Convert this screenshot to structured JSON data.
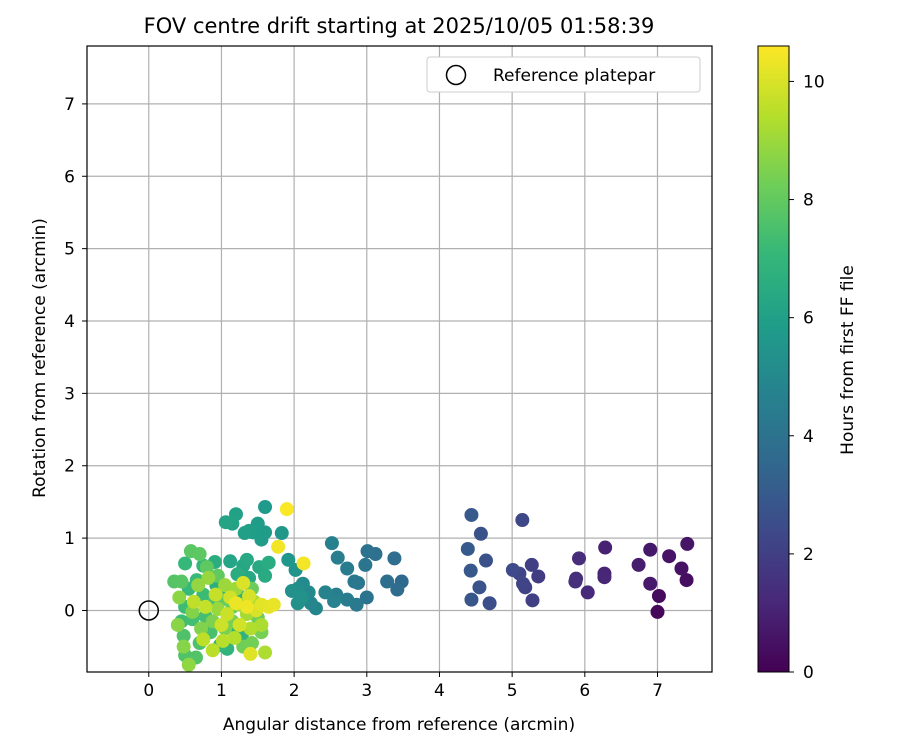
{
  "chart_data": {
    "type": "scatter",
    "title": "FOV centre drift starting at 2025/10/05 01:58:39",
    "xlabel": "Angular distance from reference (arcmin)",
    "ylabel": "Rotation from reference (arcmin)",
    "xlim": [
      -0.85,
      7.75
    ],
    "ylim": [
      -0.85,
      7.8
    ],
    "xticks": [
      0,
      1,
      2,
      3,
      4,
      5,
      6,
      7
    ],
    "yticks": [
      0,
      1,
      2,
      3,
      4,
      5,
      6,
      7
    ],
    "grid": true,
    "legend": {
      "placement": "top-right",
      "entries": [
        "Reference platepar"
      ]
    },
    "reference_point": {
      "name": "Reference platepar",
      "x": 0,
      "y": 0
    },
    "colorbar": {
      "label": "Hours from first FF file",
      "range": [
        0,
        10.6
      ],
      "ticks": [
        0,
        2,
        4,
        6,
        8,
        10
      ],
      "colormap": "viridis",
      "colors": [
        "#440154",
        "#482878",
        "#3e4989",
        "#31688e",
        "#26828e",
        "#1f9e89",
        "#35b779",
        "#6ece58",
        "#b5de2b",
        "#fde725"
      ]
    },
    "points": [
      {
        "x": 7.0,
        "y": -0.02,
        "t": 0.2
      },
      {
        "x": 7.02,
        "y": 0.2,
        "t": 0.3
      },
      {
        "x": 7.4,
        "y": 0.42,
        "t": 0.4
      },
      {
        "x": 7.33,
        "y": 0.58,
        "t": 0.5
      },
      {
        "x": 7.16,
        "y": 0.75,
        "t": 0.55
      },
      {
        "x": 7.41,
        "y": 0.92,
        "t": 0.6
      },
      {
        "x": 6.9,
        "y": 0.84,
        "t": 0.7
      },
      {
        "x": 6.9,
        "y": 0.37,
        "t": 0.75
      },
      {
        "x": 6.74,
        "y": 0.63,
        "t": 0.85
      },
      {
        "x": 6.28,
        "y": 0.87,
        "t": 1.0
      },
      {
        "x": 6.27,
        "y": 0.51,
        "t": 1.1
      },
      {
        "x": 6.27,
        "y": 0.46,
        "t": 1.15
      },
      {
        "x": 6.04,
        "y": 0.25,
        "t": 1.25
      },
      {
        "x": 5.92,
        "y": 0.72,
        "t": 1.35
      },
      {
        "x": 5.88,
        "y": 0.44,
        "t": 1.4
      },
      {
        "x": 5.87,
        "y": 0.4,
        "t": 1.45
      },
      {
        "x": 5.36,
        "y": 0.47,
        "t": 1.9
      },
      {
        "x": 5.27,
        "y": 0.63,
        "t": 2.0
      },
      {
        "x": 5.28,
        "y": 0.14,
        "t": 2.05
      },
      {
        "x": 5.18,
        "y": 0.32,
        "t": 2.1
      },
      {
        "x": 5.15,
        "y": 0.37,
        "t": 2.15
      },
      {
        "x": 5.1,
        "y": 0.51,
        "t": 2.2
      },
      {
        "x": 5.14,
        "y": 1.25,
        "t": 2.3
      },
      {
        "x": 5.01,
        "y": 0.56,
        "t": 2.4
      },
      {
        "x": 4.69,
        "y": 0.1,
        "t": 2.55
      },
      {
        "x": 4.64,
        "y": 0.69,
        "t": 2.65
      },
      {
        "x": 4.57,
        "y": 1.06,
        "t": 2.7
      },
      {
        "x": 4.55,
        "y": 0.32,
        "t": 2.75
      },
      {
        "x": 4.44,
        "y": 0.15,
        "t": 2.85
      },
      {
        "x": 4.43,
        "y": 0.55,
        "t": 2.9
      },
      {
        "x": 4.44,
        "y": 1.32,
        "t": 2.95
      },
      {
        "x": 4.39,
        "y": 0.85,
        "t": 3.0
      },
      {
        "x": 3.48,
        "y": 0.4,
        "t": 3.6
      },
      {
        "x": 3.42,
        "y": 0.29,
        "t": 3.7
      },
      {
        "x": 3.38,
        "y": 0.72,
        "t": 3.8
      },
      {
        "x": 3.28,
        "y": 0.4,
        "t": 3.85
      },
      {
        "x": 3.12,
        "y": 0.78,
        "t": 3.9
      },
      {
        "x": 3.01,
        "y": 0.82,
        "t": 4.0
      },
      {
        "x": 3.0,
        "y": 0.18,
        "t": 4.05
      },
      {
        "x": 2.98,
        "y": 0.63,
        "t": 4.1
      },
      {
        "x": 2.88,
        "y": 0.38,
        "t": 4.2
      },
      {
        "x": 2.83,
        "y": 0.4,
        "t": 4.25
      },
      {
        "x": 2.86,
        "y": 0.08,
        "t": 4.3
      },
      {
        "x": 2.73,
        "y": 0.58,
        "t": 4.4
      },
      {
        "x": 2.73,
        "y": 0.15,
        "t": 4.45
      },
      {
        "x": 2.6,
        "y": 0.73,
        "t": 4.5
      },
      {
        "x": 2.58,
        "y": 0.22,
        "t": 4.55
      },
      {
        "x": 2.52,
        "y": 0.93,
        "t": 4.6
      },
      {
        "x": 2.55,
        "y": 0.13,
        "t": 4.65
      },
      {
        "x": 2.43,
        "y": 0.25,
        "t": 4.75
      },
      {
        "x": 2.3,
        "y": 0.03,
        "t": 4.85
      },
      {
        "x": 2.23,
        "y": 0.1,
        "t": 4.9
      },
      {
        "x": 2.2,
        "y": 0.25,
        "t": 5.0
      },
      {
        "x": 2.13,
        "y": 0.2,
        "t": 5.05
      },
      {
        "x": 2.12,
        "y": 0.37,
        "t": 5.1
      },
      {
        "x": 2.05,
        "y": 0.3,
        "t": 5.2
      },
      {
        "x": 1.97,
        "y": 0.27,
        "t": 5.3
      },
      {
        "x": 2.05,
        "y": 0.1,
        "t": 5.35
      },
      {
        "x": 2.1,
        "y": 0.18,
        "t": 5.4
      },
      {
        "x": 2.02,
        "y": 0.56,
        "t": 5.5
      },
      {
        "x": 1.92,
        "y": 0.7,
        "t": 5.55
      },
      {
        "x": 1.83,
        "y": 1.07,
        "t": 5.6
      },
      {
        "x": 1.6,
        "y": 1.43,
        "t": 5.7
      },
      {
        "x": 1.6,
        "y": 1.08,
        "t": 5.75
      },
      {
        "x": 1.55,
        "y": 0.98,
        "t": 5.8
      },
      {
        "x": 1.5,
        "y": 1.2,
        "t": 5.85
      },
      {
        "x": 1.43,
        "y": 1.08,
        "t": 5.9
      },
      {
        "x": 1.38,
        "y": 1.1,
        "t": 5.95
      },
      {
        "x": 1.32,
        "y": 1.07,
        "t": 6.0
      },
      {
        "x": 1.2,
        "y": 1.33,
        "t": 6.05
      },
      {
        "x": 1.15,
        "y": 1.2,
        "t": 6.1
      },
      {
        "x": 1.06,
        "y": 1.22,
        "t": 6.15
      },
      {
        "x": 1.12,
        "y": 0.68,
        "t": 6.2
      },
      {
        "x": 1.3,
        "y": 0.62,
        "t": 6.25
      },
      {
        "x": 1.38,
        "y": 0.45,
        "t": 6.3
      },
      {
        "x": 1.35,
        "y": 0.7,
        "t": 6.35
      },
      {
        "x": 1.52,
        "y": 0.6,
        "t": 6.4
      },
      {
        "x": 1.6,
        "y": 0.48,
        "t": 6.45
      },
      {
        "x": 1.65,
        "y": 0.66,
        "t": 6.5
      },
      {
        "x": 1.22,
        "y": 0.5,
        "t": 6.55
      },
      {
        "x": 0.91,
        "y": 0.67,
        "t": 6.6
      },
      {
        "x": 0.93,
        "y": 0.35,
        "t": 6.65
      },
      {
        "x": 1.05,
        "y": 0.25,
        "t": 6.7
      },
      {
        "x": 1.3,
        "y": 0.18,
        "t": 6.75
      },
      {
        "x": 1.28,
        "y": -0.35,
        "t": 6.8
      },
      {
        "x": 1.2,
        "y": -0.28,
        "t": 6.85
      },
      {
        "x": 1.08,
        "y": -0.53,
        "t": 6.9
      },
      {
        "x": 0.98,
        "y": -0.48,
        "t": 6.95
      },
      {
        "x": 0.75,
        "y": 0.62,
        "t": 7.0
      },
      {
        "x": 0.5,
        "y": 0.65,
        "t": 7.05
      },
      {
        "x": 0.55,
        "y": 0.3,
        "t": 7.1
      },
      {
        "x": 0.66,
        "y": 0.42,
        "t": 7.15
      },
      {
        "x": 0.75,
        "y": 0.22,
        "t": 7.2
      },
      {
        "x": 0.5,
        "y": 0.05,
        "t": 7.25
      },
      {
        "x": 0.45,
        "y": -0.15,
        "t": 7.3
      },
      {
        "x": 0.6,
        "y": -0.12,
        "t": 7.35
      },
      {
        "x": 0.78,
        "y": -0.08,
        "t": 7.4
      },
      {
        "x": 0.9,
        "y": 0.1,
        "t": 7.45
      },
      {
        "x": 0.85,
        "y": -0.3,
        "t": 7.5
      },
      {
        "x": 0.7,
        "y": -0.45,
        "t": 7.55
      },
      {
        "x": 0.48,
        "y": -0.35,
        "t": 7.6
      },
      {
        "x": 0.5,
        "y": -0.62,
        "t": 7.65
      },
      {
        "x": 0.65,
        "y": -0.65,
        "t": 7.7
      },
      {
        "x": 0.35,
        "y": 0.4,
        "t": 7.75
      },
      {
        "x": 0.45,
        "y": 0.4,
        "t": 7.8
      },
      {
        "x": 0.58,
        "y": 0.82,
        "t": 7.85
      },
      {
        "x": 0.7,
        "y": 0.78,
        "t": 7.9
      },
      {
        "x": 0.8,
        "y": 0.6,
        "t": 7.95
      },
      {
        "x": 0.95,
        "y": 0.48,
        "t": 8.0
      },
      {
        "x": 1.0,
        "y": 0.15,
        "t": 8.05
      },
      {
        "x": 1.15,
        "y": 0.05,
        "t": 8.1
      },
      {
        "x": 1.42,
        "y": 0.3,
        "t": 8.15
      },
      {
        "x": 1.5,
        "y": -0.1,
        "t": 8.2
      },
      {
        "x": 1.3,
        "y": -0.5,
        "t": 8.25
      },
      {
        "x": 1.42,
        "y": -0.45,
        "t": 8.3
      },
      {
        "x": 1.55,
        "y": -0.3,
        "t": 8.35
      },
      {
        "x": 1.15,
        "y": -0.15,
        "t": 8.4
      },
      {
        "x": 1.05,
        "y": -0.25,
        "t": 8.45
      },
      {
        "x": 0.88,
        "y": -0.15,
        "t": 8.5
      },
      {
        "x": 0.72,
        "y": -0.25,
        "t": 8.55
      },
      {
        "x": 0.6,
        "y": -0.02,
        "t": 8.6
      },
      {
        "x": 0.48,
        "y": -0.5,
        "t": 8.65
      },
      {
        "x": 0.4,
        "y": -0.2,
        "t": 8.7
      },
      {
        "x": 0.42,
        "y": 0.18,
        "t": 8.75
      },
      {
        "x": 0.55,
        "y": -0.75,
        "t": 8.8
      },
      {
        "x": 0.68,
        "y": 0.35,
        "t": 8.85
      },
      {
        "x": 0.82,
        "y": 0.45,
        "t": 8.9
      },
      {
        "x": 0.95,
        "y": 0.02,
        "t": 8.95
      },
      {
        "x": 1.05,
        "y": 0.35,
        "t": 9.0
      },
      {
        "x": 1.2,
        "y": 0.3,
        "t": 9.05
      },
      {
        "x": 1.25,
        "y": 0.08,
        "t": 9.1
      },
      {
        "x": 1.35,
        "y": -0.05,
        "t": 9.15
      },
      {
        "x": 1.45,
        "y": 0.12,
        "t": 9.2
      },
      {
        "x": 1.55,
        "y": -0.2,
        "t": 9.25
      },
      {
        "x": 1.6,
        "y": -0.58,
        "t": 9.3
      },
      {
        "x": 1.4,
        "y": -0.25,
        "t": 9.35
      },
      {
        "x": 1.18,
        "y": -0.38,
        "t": 9.4
      },
      {
        "x": 1.02,
        "y": -0.42,
        "t": 9.45
      },
      {
        "x": 0.88,
        "y": -0.55,
        "t": 9.5
      },
      {
        "x": 0.75,
        "y": -0.4,
        "t": 9.55
      },
      {
        "x": 0.62,
        "y": 0.12,
        "t": 9.6
      },
      {
        "x": 0.78,
        "y": 0.05,
        "t": 9.65
      },
      {
        "x": 0.92,
        "y": 0.22,
        "t": 9.7
      },
      {
        "x": 1.08,
        "y": -0.05,
        "t": 9.75
      },
      {
        "x": 1.0,
        "y": -0.2,
        "t": 9.8
      },
      {
        "x": 1.12,
        "y": 0.18,
        "t": 9.85
      },
      {
        "x": 1.25,
        "y": -0.2,
        "t": 9.9
      },
      {
        "x": 1.38,
        "y": 0.2,
        "t": 9.95
      },
      {
        "x": 1.48,
        "y": 0.0,
        "t": 10.0
      },
      {
        "x": 1.3,
        "y": 0.38,
        "t": 10.05
      },
      {
        "x": 1.4,
        "y": -0.6,
        "t": 10.1
      },
      {
        "x": 1.55,
        "y": 0.08,
        "t": 10.15
      },
      {
        "x": 1.65,
        "y": 0.05,
        "t": 10.2
      },
      {
        "x": 1.72,
        "y": 0.08,
        "t": 10.25
      },
      {
        "x": 1.2,
        "y": 0.1,
        "t": 10.3
      },
      {
        "x": 1.35,
        "y": 0.05,
        "t": 10.35
      },
      {
        "x": 1.78,
        "y": 0.88,
        "t": 10.4
      },
      {
        "x": 2.13,
        "y": 0.65,
        "t": 10.45
      },
      {
        "x": 1.9,
        "y": 1.4,
        "t": 10.55
      }
    ]
  }
}
